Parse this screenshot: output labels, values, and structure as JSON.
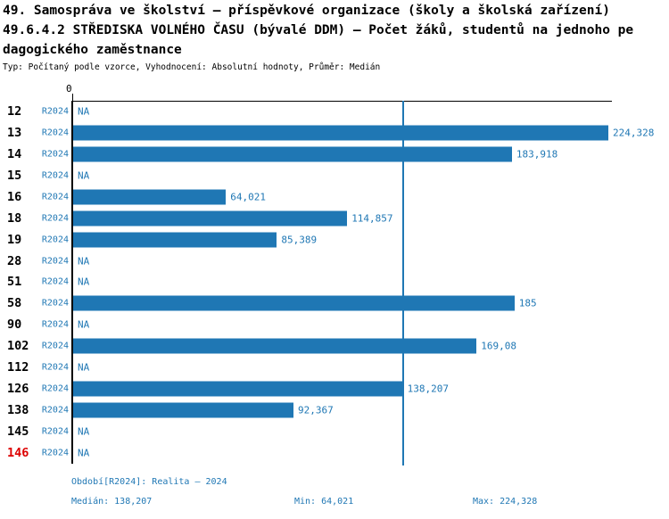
{
  "title": {
    "line1": "49. Samospráva ve školství – příspěvkové organizace (školy a školská zařízení)",
    "line2": "49.6.4.2 STŘEDISKA VOLNÉHO ČASU (bývalé DDM) – Počet žáků, studentů na jednoho pe",
    "line3": "dagogického zaměstnance",
    "subtitle": "Typ: Počítaný podle vzorce, Vyhodnocení: Absolutní hodnoty, Průměr: Medián"
  },
  "axis": {
    "zero_label": "0"
  },
  "colors": {
    "accent_blue": "#1f77b4",
    "highlight_red": "#dd0000",
    "axis_black": "#000000",
    "background": "#ffffff"
  },
  "rows": [
    {
      "id": "12",
      "series": "R2024",
      "display": "NA",
      "value": null,
      "id_color": "black"
    },
    {
      "id": "13",
      "series": "R2024",
      "display": "224,328",
      "value": 224.328,
      "id_color": "black"
    },
    {
      "id": "14",
      "series": "R2024",
      "display": "183,918",
      "value": 183.918,
      "id_color": "black"
    },
    {
      "id": "15",
      "series": "R2024",
      "display": "NA",
      "value": null,
      "id_color": "black"
    },
    {
      "id": "16",
      "series": "R2024",
      "display": "64,021",
      "value": 64.021,
      "id_color": "black"
    },
    {
      "id": "18",
      "series": "R2024",
      "display": "114,857",
      "value": 114.857,
      "id_color": "black"
    },
    {
      "id": "19",
      "series": "R2024",
      "display": "85,389",
      "value": 85.389,
      "id_color": "black"
    },
    {
      "id": "28",
      "series": "R2024",
      "display": "NA",
      "value": null,
      "id_color": "black"
    },
    {
      "id": "51",
      "series": "R2024",
      "display": "NA",
      "value": null,
      "id_color": "black"
    },
    {
      "id": "58",
      "series": "R2024",
      "display": "185",
      "value": 185,
      "id_color": "black"
    },
    {
      "id": "90",
      "series": "R2024",
      "display": "NA",
      "value": null,
      "id_color": "black"
    },
    {
      "id": "102",
      "series": "R2024",
      "display": "169,08",
      "value": 169.08,
      "id_color": "black"
    },
    {
      "id": "112",
      "series": "R2024",
      "display": "NA",
      "value": null,
      "id_color": "black"
    },
    {
      "id": "126",
      "series": "R2024",
      "display": "138,207",
      "value": 138.207,
      "id_color": "black"
    },
    {
      "id": "138",
      "series": "R2024",
      "display": "92,367",
      "value": 92.367,
      "id_color": "black"
    },
    {
      "id": "145",
      "series": "R2024",
      "display": "NA",
      "value": null,
      "id_color": "black"
    },
    {
      "id": "146",
      "series": "R2024",
      "display": "NA",
      "value": null,
      "id_color": "red"
    }
  ],
  "footer": {
    "period": "Období[R2024]: Realita – 2024",
    "median": "Medián: 138,207",
    "min": "Min: 64,021",
    "max": "Max: 224,328"
  },
  "chart_data": {
    "type": "bar",
    "orientation": "horizontal",
    "title": "49.6.4.2 STŘEDISKA VOLNÉHO ČASU (bývalé DDM) – Počet žáků, studentů na jednoho pedagogického zaměstnance",
    "subtitle": "Typ: Počítaný podle vzorce, Vyhodnocení: Absolutní hodnoty, Průměr: Medián",
    "categories": [
      "12",
      "13",
      "14",
      "15",
      "16",
      "18",
      "19",
      "28",
      "51",
      "58",
      "90",
      "102",
      "112",
      "126",
      "138",
      "145",
      "146"
    ],
    "series": [
      {
        "name": "R2024",
        "values": [
          null,
          224.328,
          183.918,
          null,
          64.021,
          114.857,
          85.389,
          null,
          null,
          185,
          null,
          169.08,
          null,
          138.207,
          92.367,
          null,
          null
        ]
      }
    ],
    "value_labels": [
      "NA",
      "224,328",
      "183,918",
      "NA",
      "64,021",
      "114,857",
      "85,389",
      "NA",
      "NA",
      "185",
      "NA",
      "169,08",
      "NA",
      "138,207",
      "92,367",
      "NA",
      "NA"
    ],
    "xlabel": "",
    "ylabel": "",
    "xlim": [
      0,
      226
    ],
    "median": 138.207,
    "min": 64.021,
    "max": 224.328,
    "median_line": true,
    "grid": false,
    "legend_position": "none"
  }
}
